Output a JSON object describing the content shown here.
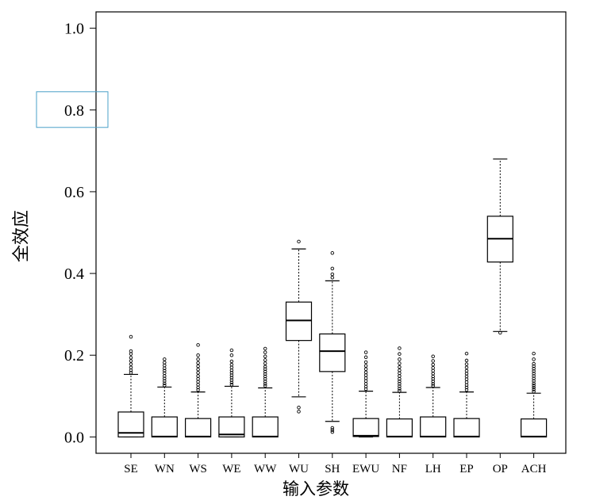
{
  "chart_data": {
    "type": "box",
    "xlabel": "输入参数",
    "ylabel": "全效应",
    "ylim": [
      -0.04,
      1.04
    ],
    "yticks": [
      0.0,
      0.2,
      0.4,
      0.6,
      0.8,
      1.0
    ],
    "ytick_labels": [
      "0.0",
      "0.2",
      "0.4",
      "0.6",
      "0.8",
      "1.0"
    ],
    "highlighted_tick": "0.8",
    "highlight_color": "#4aa0c8",
    "categories": [
      "SE",
      "WN",
      "WS",
      "WE",
      "WW",
      "WU",
      "SH",
      "EWU",
      "NF",
      "LH",
      "EP",
      "OP",
      "ACH"
    ],
    "boxes": [
      {
        "q1": 0.0,
        "median": 0.01,
        "q3": 0.061,
        "whisker_low": 0.0,
        "whisker_high": 0.153,
        "outliers": [
          0.157,
          0.163,
          0.17,
          0.178,
          0.186,
          0.194,
          0.203,
          0.21,
          0.245
        ]
      },
      {
        "q1": 0.0,
        "median": 0.001,
        "q3": 0.049,
        "whisker_low": 0.0,
        "whisker_high": 0.122,
        "outliers": [
          0.126,
          0.131,
          0.137,
          0.143,
          0.149,
          0.156,
          0.162,
          0.168,
          0.175,
          0.182,
          0.19
        ]
      },
      {
        "q1": 0.0,
        "median": 0.001,
        "q3": 0.045,
        "whisker_low": 0.0,
        "whisker_high": 0.11,
        "outliers": [
          0.115,
          0.121,
          0.128,
          0.135,
          0.142,
          0.149,
          0.157,
          0.165,
          0.173,
          0.181,
          0.19,
          0.2,
          0.225
        ]
      },
      {
        "q1": 0.0,
        "median": 0.006,
        "q3": 0.049,
        "whisker_low": 0.0,
        "whisker_high": 0.124,
        "outliers": [
          0.128,
          0.133,
          0.139,
          0.145,
          0.151,
          0.157,
          0.163,
          0.17,
          0.177,
          0.185,
          0.2,
          0.212
        ]
      },
      {
        "q1": 0.0,
        "median": 0.001,
        "q3": 0.049,
        "whisker_low": 0.0,
        "whisker_high": 0.12,
        "outliers": [
          0.125,
          0.13,
          0.136,
          0.142,
          0.148,
          0.154,
          0.16,
          0.166,
          0.172,
          0.18,
          0.188,
          0.197,
          0.207,
          0.216
        ]
      },
      {
        "q1": 0.236,
        "median": 0.285,
        "q3": 0.33,
        "whisker_low": 0.098,
        "whisker_high": 0.46,
        "outliers": [
          0.062,
          0.072,
          0.478
        ]
      },
      {
        "q1": 0.16,
        "median": 0.21,
        "q3": 0.252,
        "whisker_low": 0.038,
        "whisker_high": 0.382,
        "outliers": [
          0.012,
          0.017,
          0.022,
          0.39,
          0.398,
          0.412,
          0.45
        ]
      },
      {
        "q1": 0.001,
        "median": 0.003,
        "q3": 0.045,
        "whisker_low": 0.0,
        "whisker_high": 0.112,
        "outliers": [
          0.117,
          0.123,
          0.13,
          0.137,
          0.144,
          0.151,
          0.158,
          0.166,
          0.174,
          0.183,
          0.195,
          0.207
        ]
      },
      {
        "q1": 0.0,
        "median": 0.001,
        "q3": 0.044,
        "whisker_low": 0.0,
        "whisker_high": 0.109,
        "outliers": [
          0.113,
          0.118,
          0.124,
          0.13,
          0.136,
          0.142,
          0.149,
          0.156,
          0.163,
          0.171,
          0.18,
          0.19,
          0.203,
          0.217
        ]
      },
      {
        "q1": 0.0,
        "median": 0.001,
        "q3": 0.049,
        "whisker_low": 0.0,
        "whisker_high": 0.121,
        "outliers": [
          0.125,
          0.13,
          0.136,
          0.142,
          0.148,
          0.155,
          0.162,
          0.169,
          0.177,
          0.186,
          0.197
        ]
      },
      {
        "q1": 0.0,
        "median": 0.001,
        "q3": 0.045,
        "whisker_low": 0.0,
        "whisker_high": 0.11,
        "outliers": [
          0.115,
          0.121,
          0.127,
          0.134,
          0.141,
          0.148,
          0.155,
          0.162,
          0.17,
          0.178,
          0.187,
          0.204
        ]
      },
      {
        "q1": 0.428,
        "median": 0.485,
        "q3": 0.54,
        "whisker_low": 0.258,
        "whisker_high": 0.68,
        "outliers": [
          0.255
        ]
      },
      {
        "q1": 0.0,
        "median": 0.001,
        "q3": 0.044,
        "whisker_low": 0.0,
        "whisker_high": 0.107,
        "outliers": [
          0.111,
          0.116,
          0.121,
          0.126,
          0.131,
          0.137,
          0.143,
          0.149,
          0.155,
          0.161,
          0.167,
          0.173,
          0.179,
          0.19,
          0.204
        ]
      }
    ]
  }
}
